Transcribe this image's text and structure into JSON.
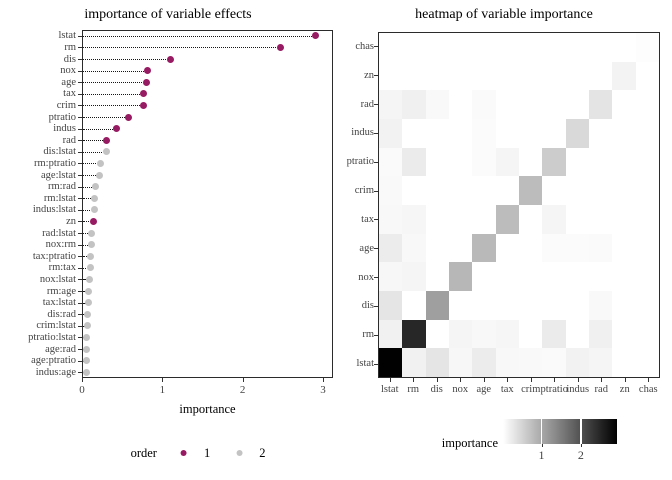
{
  "figure": {
    "background": "#ffffff"
  },
  "chart_data": [
    {
      "type": "scatter",
      "variant": "cleveland-dot-plot",
      "title": "importance of variable effects",
      "xlabel": "importance",
      "xlim": [
        0,
        3.1
      ],
      "xticks": [
        0,
        1,
        2,
        3
      ],
      "grid": false,
      "legend": {
        "title": "order",
        "position": "bottom",
        "entries": [
          {
            "label": "1",
            "color": "#971b62"
          },
          {
            "label": "2",
            "color": "#c3c3c3"
          }
        ]
      },
      "categories": [
        "lstat",
        "rm",
        "dis",
        "nox",
        "age",
        "tax",
        "crim",
        "ptratio",
        "indus",
        "rad",
        "dis:lstat",
        "rm:ptratio",
        "age:lstat",
        "rm:rad",
        "rm:lstat",
        "indus:lstat",
        "zn",
        "rad:lstat",
        "nox:rm",
        "tax:ptratio",
        "rm:tax",
        "nox:lstat",
        "rm:age",
        "tax:lstat",
        "dis:rad",
        "crim:lstat",
        "ptratio:lstat",
        "age:rad",
        "age:ptratio",
        "indus:age"
      ],
      "values": [
        2.91,
        2.47,
        1.1,
        0.82,
        0.8,
        0.77,
        0.77,
        0.58,
        0.43,
        0.31,
        0.3,
        0.23,
        0.22,
        0.17,
        0.16,
        0.15,
        0.14,
        0.12,
        0.12,
        0.11,
        0.1,
        0.09,
        0.08,
        0.08,
        0.07,
        0.07,
        0.06,
        0.06,
        0.05,
        0.05
      ],
      "orders": [
        1,
        1,
        1,
        1,
        1,
        1,
        1,
        1,
        1,
        1,
        2,
        2,
        2,
        2,
        2,
        2,
        1,
        2,
        2,
        2,
        2,
        2,
        2,
        2,
        2,
        2,
        2,
        2,
        2,
        2
      ]
    },
    {
      "type": "heatmap",
      "title": "heatmap of variable importance",
      "rows_top_to_bottom": [
        "chas",
        "zn",
        "rad",
        "indus",
        "ptratio",
        "crim",
        "tax",
        "age",
        "nox",
        "dis",
        "rm",
        "lstat"
      ],
      "cols_left_to_right": [
        "lstat",
        "rm",
        "dis",
        "nox",
        "age",
        "tax",
        "crim",
        "ptratio",
        "indus",
        "rad",
        "zn",
        "chas"
      ],
      "values": [
        [
          0,
          0,
          0,
          0,
          0,
          0,
          0,
          0,
          0,
          0,
          0,
          0.02
        ],
        [
          0,
          0,
          0,
          0,
          0,
          0,
          0,
          0,
          0,
          0,
          0.14,
          0
        ],
        [
          0.12,
          0.17,
          0.07,
          0,
          0.06,
          0,
          0,
          0,
          0,
          0.31,
          0,
          0
        ],
        [
          0.15,
          0,
          0,
          0,
          0.05,
          0,
          0,
          0,
          0.43,
          0,
          0,
          0
        ],
        [
          0.06,
          0.23,
          0,
          0,
          0.05,
          0.11,
          0,
          0.58,
          0,
          0,
          0,
          0
        ],
        [
          0.07,
          0,
          0,
          0,
          0,
          0,
          0.77,
          0,
          0,
          0,
          0,
          0
        ],
        [
          0.08,
          0.1,
          0,
          0,
          0,
          0.77,
          0,
          0.11,
          0,
          0,
          0,
          0
        ],
        [
          0.22,
          0.08,
          0,
          0,
          0.8,
          0,
          0,
          0.05,
          0.05,
          0.06,
          0,
          0
        ],
        [
          0.09,
          0.12,
          0,
          0.82,
          0,
          0,
          0,
          0,
          0,
          0,
          0,
          0
        ],
        [
          0.3,
          0,
          1.1,
          0,
          0,
          0,
          0,
          0,
          0,
          0.07,
          0,
          0
        ],
        [
          0.16,
          2.47,
          0,
          0.12,
          0.08,
          0.1,
          0,
          0.23,
          0,
          0.17,
          0,
          0
        ],
        [
          2.91,
          0.16,
          0.3,
          0.09,
          0.22,
          0.08,
          0.07,
          0.06,
          0.15,
          0.12,
          0,
          0
        ]
      ],
      "colorbar": {
        "title": "importance",
        "ticks": [
          1,
          2
        ],
        "domain": [
          0.02,
          2.92
        ],
        "low": "#ffffff",
        "high": "#000000"
      }
    }
  ]
}
